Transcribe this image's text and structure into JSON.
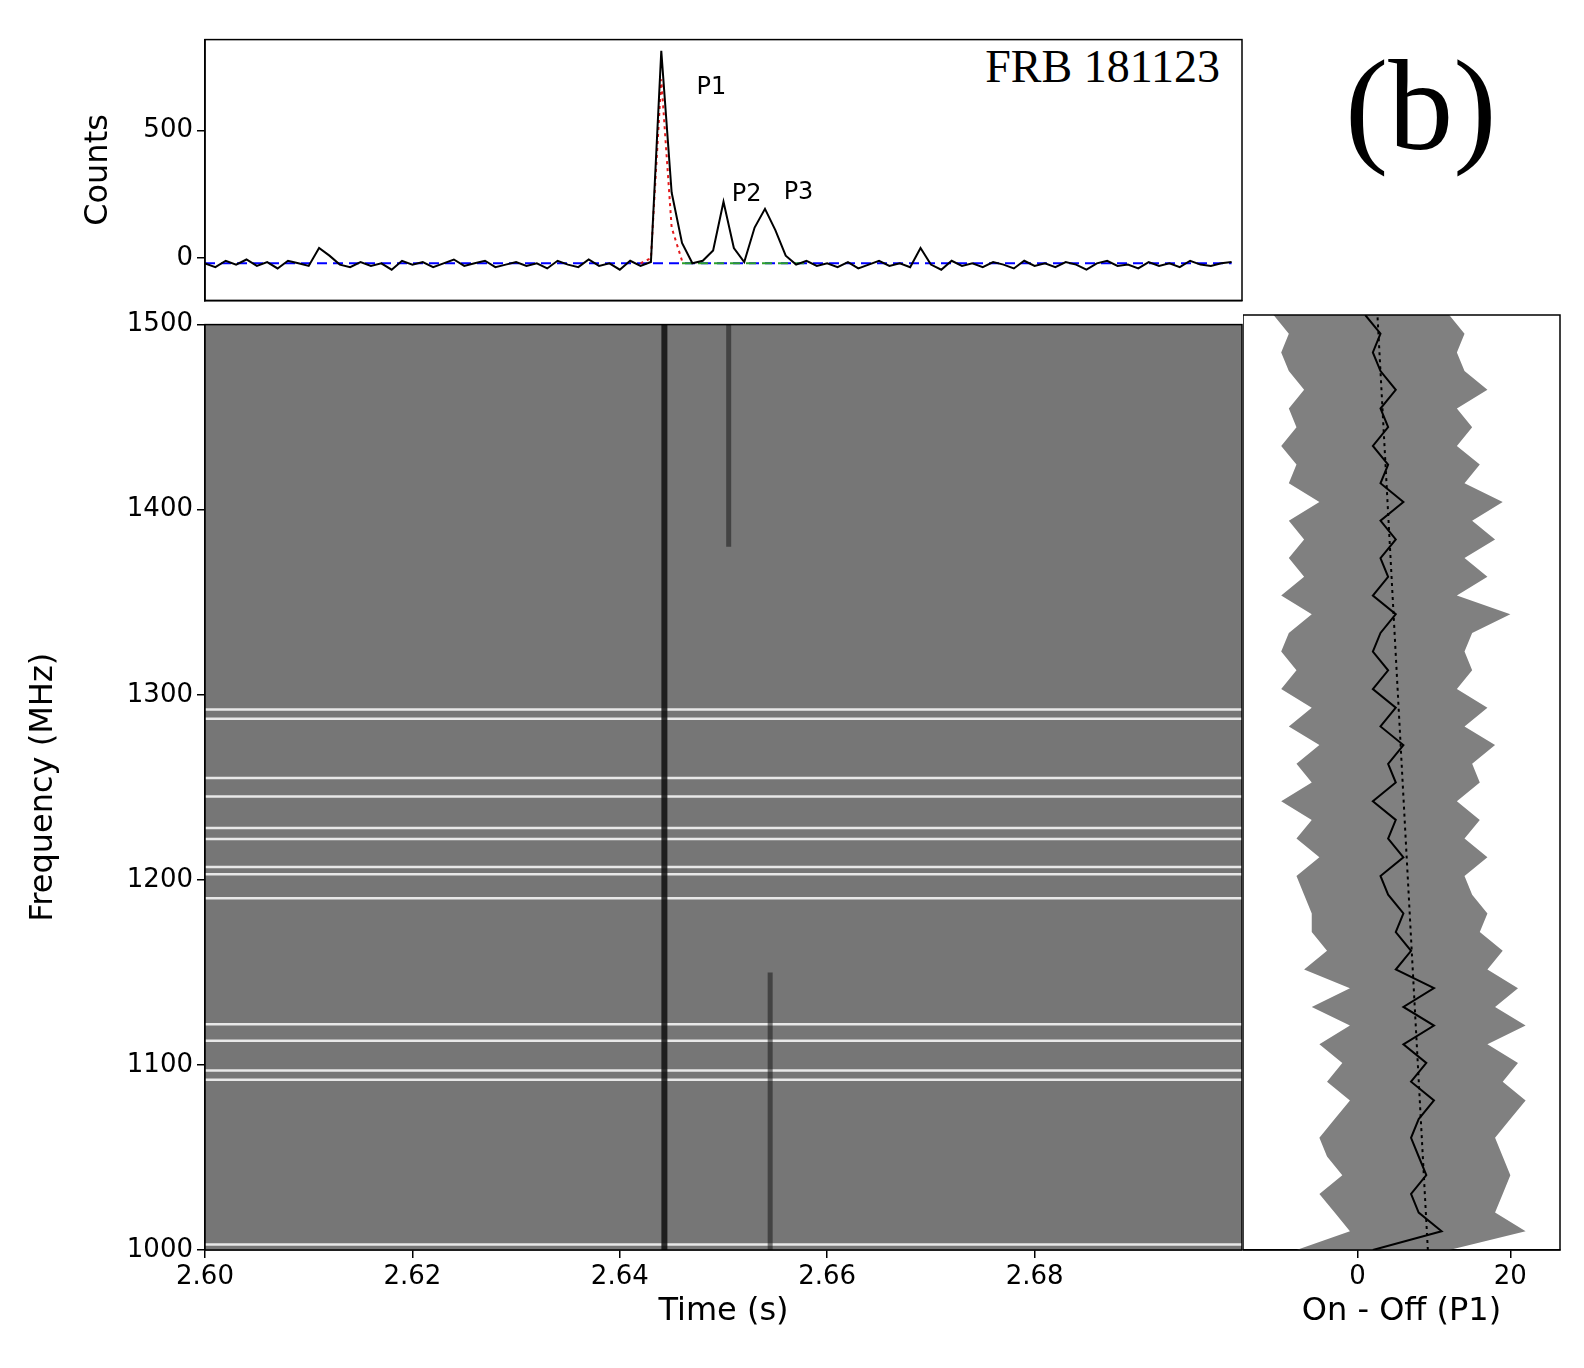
{
  "figure_label": "(b)",
  "chart_data": [
    {
      "type": "line",
      "title": "FRB 181123",
      "y_label": "Counts",
      "x": [
        2.6,
        2.601,
        2.602,
        2.603,
        2.604,
        2.605,
        2.606,
        2.607,
        2.608,
        2.609,
        2.61,
        2.611,
        2.612,
        2.613,
        2.614,
        2.615,
        2.616,
        2.617,
        2.618,
        2.619,
        2.62,
        2.621,
        2.622,
        2.623,
        2.624,
        2.625,
        2.626,
        2.627,
        2.628,
        2.629,
        2.63,
        2.631,
        2.632,
        2.633,
        2.634,
        2.635,
        2.636,
        2.637,
        2.638,
        2.639,
        2.64,
        2.641,
        2.642,
        2.643,
        2.644,
        2.645,
        2.646,
        2.647,
        2.648,
        2.649,
        2.65,
        2.651,
        2.652,
        2.653,
        2.654,
        2.655,
        2.656,
        2.657,
        2.658,
        2.659,
        2.66,
        2.661,
        2.662,
        2.663,
        2.664,
        2.665,
        2.666,
        2.667,
        2.668,
        2.669,
        2.67,
        2.671,
        2.672,
        2.673,
        2.674,
        2.675,
        2.676,
        2.677,
        2.678,
        2.679,
        2.68,
        2.681,
        2.682,
        2.683,
        2.684,
        2.685,
        2.686,
        2.687,
        2.688,
        2.689,
        2.69,
        2.691,
        2.692,
        2.693,
        2.694,
        2.695,
        2.696,
        2.697,
        2.698,
        2.699
      ],
      "xlim": [
        2.6,
        2.7
      ],
      "ylim": [
        -165,
        855
      ],
      "yticks": [
        0,
        500
      ],
      "tick_labels": "y",
      "grid": false,
      "series": [
        {
          "color": "#000000",
          "line_style": "solid",
          "values": [
            -20,
            -35,
            -10,
            -25,
            -5,
            -30,
            -15,
            -40,
            -10,
            -20,
            -30,
            40,
            10,
            -25,
            -35,
            -15,
            -30,
            -20,
            -45,
            -10,
            -25,
            -15,
            -35,
            -20,
            -5,
            -30,
            -20,
            -10,
            -35,
            -25,
            -15,
            -30,
            -20,
            -40,
            -10,
            -25,
            -35,
            -5,
            -30,
            -20,
            -45,
            -10,
            -30,
            -15,
            811,
            257,
            60,
            -20,
            -10,
            30,
            221,
            40,
            -15,
            120,
            193,
            110,
            10,
            -25,
            -10,
            -30,
            -20,
            -35,
            -15,
            -40,
            -25,
            -10,
            -30,
            -20,
            -35,
            40,
            -25,
            -45,
            -10,
            -30,
            -20,
            -35,
            -15,
            -25,
            -40,
            -10,
            -30,
            -20,
            -35,
            -15,
            -25,
            -45,
            -20,
            -10,
            -30,
            -25,
            -40,
            -15,
            -30,
            -20,
            -35,
            -10,
            -25,
            -30,
            -20,
            -15
          ]
        },
        {
          "color": "#e41a1c",
          "line_style": "dotted",
          "values": [
            null,
            null,
            null,
            null,
            null,
            null,
            null,
            null,
            null,
            null,
            null,
            null,
            null,
            null,
            null,
            null,
            null,
            null,
            null,
            null,
            null,
            null,
            null,
            null,
            null,
            null,
            null,
            null,
            null,
            null,
            null,
            null,
            null,
            null,
            null,
            null,
            null,
            null,
            null,
            null,
            null,
            null,
            -20,
            0,
            700,
            120,
            -10,
            null,
            null,
            null,
            null,
            null,
            null,
            null,
            null,
            null,
            null,
            null,
            null,
            null,
            null,
            null,
            null,
            null,
            null,
            null,
            null,
            null,
            null,
            null,
            null,
            null,
            null,
            null,
            null,
            null,
            null,
            null,
            null,
            null,
            null,
            null,
            null,
            null,
            null,
            null,
            null,
            null,
            null,
            null,
            null,
            null,
            null,
            null,
            null,
            null,
            null,
            null,
            null,
            null
          ]
        },
        {
          "color": "#2ca02c",
          "line_style": "dashed",
          "values": [
            null,
            null,
            null,
            null,
            null,
            null,
            null,
            null,
            null,
            null,
            null,
            null,
            null,
            null,
            null,
            null,
            null,
            null,
            null,
            null,
            null,
            null,
            null,
            null,
            null,
            null,
            null,
            null,
            null,
            null,
            null,
            null,
            null,
            null,
            null,
            null,
            null,
            null,
            null,
            null,
            null,
            null,
            null,
            null,
            null,
            null,
            -20,
            -20,
            -20,
            -20,
            -20,
            -20,
            -20,
            -20,
            -20,
            -20,
            -20,
            -20,
            -20,
            null,
            null,
            null,
            null,
            null,
            null,
            null,
            null,
            null,
            null,
            null,
            null,
            null,
            null,
            null,
            null,
            null,
            null,
            null,
            null,
            null,
            null,
            null,
            null,
            null,
            null,
            null,
            null,
            null,
            null,
            null,
            null,
            null,
            null,
            null,
            null,
            null,
            null,
            null,
            null,
            null
          ]
        },
        {
          "color": "#0000ff",
          "line_style": "dashed",
          "values": [
            -20,
            -20,
            -20,
            -20,
            -20,
            -20,
            -20,
            -20,
            -20,
            -20,
            -20,
            -20,
            -20,
            -20,
            -20,
            -20,
            -20,
            -20,
            -20,
            -20,
            -20,
            -20,
            -20,
            -20,
            -20,
            -20,
            -20,
            -20,
            -20,
            -20,
            -20,
            -20,
            -20,
            -20,
            -20,
            -20,
            -20,
            -20,
            -20,
            -20,
            -20,
            -20,
            -20,
            -20,
            -20,
            -20,
            -20,
            -20,
            -20,
            -20,
            -20,
            -20,
            -20,
            -20,
            -20,
            -20,
            -20,
            -20,
            -20,
            -20,
            -20,
            -20,
            -20,
            -20,
            -20,
            -20,
            -20,
            -20,
            -20,
            -20,
            -20,
            -20,
            -20,
            -20,
            -20,
            -20,
            -20,
            -20,
            -20,
            -20,
            -20,
            -20,
            -20,
            -20,
            -20,
            -20,
            -20,
            -20,
            -20,
            -20,
            -20,
            -20,
            -20,
            -20,
            -20,
            -20,
            -20,
            -20,
            -20,
            -20
          ]
        }
      ],
      "annotations": [
        {
          "text": "P1",
          "x": 2.6474,
          "y": 668
        },
        {
          "text": "P2",
          "x": 2.6508,
          "y": 250
        },
        {
          "text": "P3",
          "x": 2.6558,
          "y": 257
        }
      ]
    },
    {
      "type": "waterfall",
      "x_label": "Time (s)",
      "y_label": "Frequency (MHz)",
      "xlim": [
        2.6,
        2.7
      ],
      "ylim": [
        1000,
        1500
      ],
      "xticks": [
        {
          "value": 2.6,
          "label": "2.60"
        },
        {
          "value": 2.62,
          "label": "2.62"
        },
        {
          "value": 2.64,
          "label": "2.64"
        },
        {
          "value": 2.66,
          "label": "2.66"
        },
        {
          "value": 2.68,
          "label": "2.68"
        }
      ],
      "yticks": [
        1000,
        1100,
        1200,
        1300,
        1400,
        1500
      ],
      "color": "#767676",
      "rfi_channels_mhz": [
        1292,
        1287,
        1255,
        1245,
        1228,
        1222,
        1207,
        1203,
        1190,
        1122,
        1113,
        1097,
        1092,
        1003
      ],
      "burst_tracks": [
        {
          "time": 2.6443,
          "freq": [
            1000,
            1500
          ]
        },
        {
          "time": 2.6505,
          "freq": [
            1380,
            1500
          ]
        },
        {
          "time": 2.6545,
          "freq": [
            1000,
            1150
          ]
        }
      ]
    },
    {
      "type": "line",
      "orientation": "horizontal",
      "x_label": "On - Off (P1)",
      "y": [
        1000,
        1010,
        1020,
        1030,
        1040,
        1050,
        1060,
        1070,
        1080,
        1090,
        1100,
        1110,
        1120,
        1130,
        1140,
        1150,
        1160,
        1170,
        1180,
        1190,
        1200,
        1210,
        1220,
        1230,
        1240,
        1250,
        1260,
        1270,
        1280,
        1290,
        1300,
        1310,
        1320,
        1330,
        1340,
        1350,
        1360,
        1370,
        1380,
        1390,
        1400,
        1410,
        1420,
        1430,
        1440,
        1450,
        1460,
        1470,
        1480,
        1490,
        1500
      ],
      "xlim": [
        -15,
        26.5
      ],
      "xticks": [
        0,
        20
      ],
      "ylim": [
        1000,
        1500
      ],
      "tick_labels": "x",
      "grid": false,
      "series": [
        {
          "color": "#000000",
          "line_style": "solid",
          "values": [
            2,
            11,
            8,
            7,
            9,
            8,
            7,
            8,
            10,
            7,
            9,
            6,
            10,
            6,
            10,
            5,
            7,
            5,
            6,
            4,
            3,
            6,
            4,
            5,
            2,
            5,
            4,
            6,
            3,
            5,
            2,
            4,
            2,
            3,
            5,
            2,
            4,
            3,
            5,
            3,
            6,
            3,
            4,
            2,
            4,
            3,
            5,
            3,
            2,
            3,
            1
          ]
        }
      ],
      "fit_line": {
        "y": [
          1000,
          1500
        ],
        "x": [
          9.2,
          2.6
        ],
        "color": "#000000",
        "line_style": "dotted"
      },
      "error_band": {
        "color": "#808080",
        "lower": [
          -8,
          -1,
          -3,
          -5,
          -2,
          -4,
          -5,
          -3,
          -1,
          -4,
          -2,
          -5,
          -1,
          -6,
          -1,
          -7,
          -4,
          -6,
          -6,
          -7,
          -8,
          -5,
          -8,
          -6,
          -10,
          -6,
          -8,
          -5,
          -9,
          -6,
          -10,
          -8,
          -10,
          -9,
          -6,
          -10,
          -7,
          -9,
          -7,
          -9,
          -5,
          -9,
          -8,
          -10,
          -8,
          -9,
          -7,
          -9,
          -10,
          -9,
          -11
        ],
        "upper": [
          12,
          22,
          18,
          19,
          20,
          19,
          18,
          20,
          22,
          19,
          21,
          17,
          22,
          18,
          21,
          17,
          19,
          16,
          17,
          15,
          14,
          17,
          14,
          16,
          13,
          16,
          15,
          18,
          14,
          17,
          13,
          15,
          14,
          15,
          20,
          13,
          17,
          14,
          18,
          15,
          19,
          14,
          16,
          13,
          15,
          13,
          17,
          14,
          13,
          14,
          12
        ]
      }
    }
  ]
}
